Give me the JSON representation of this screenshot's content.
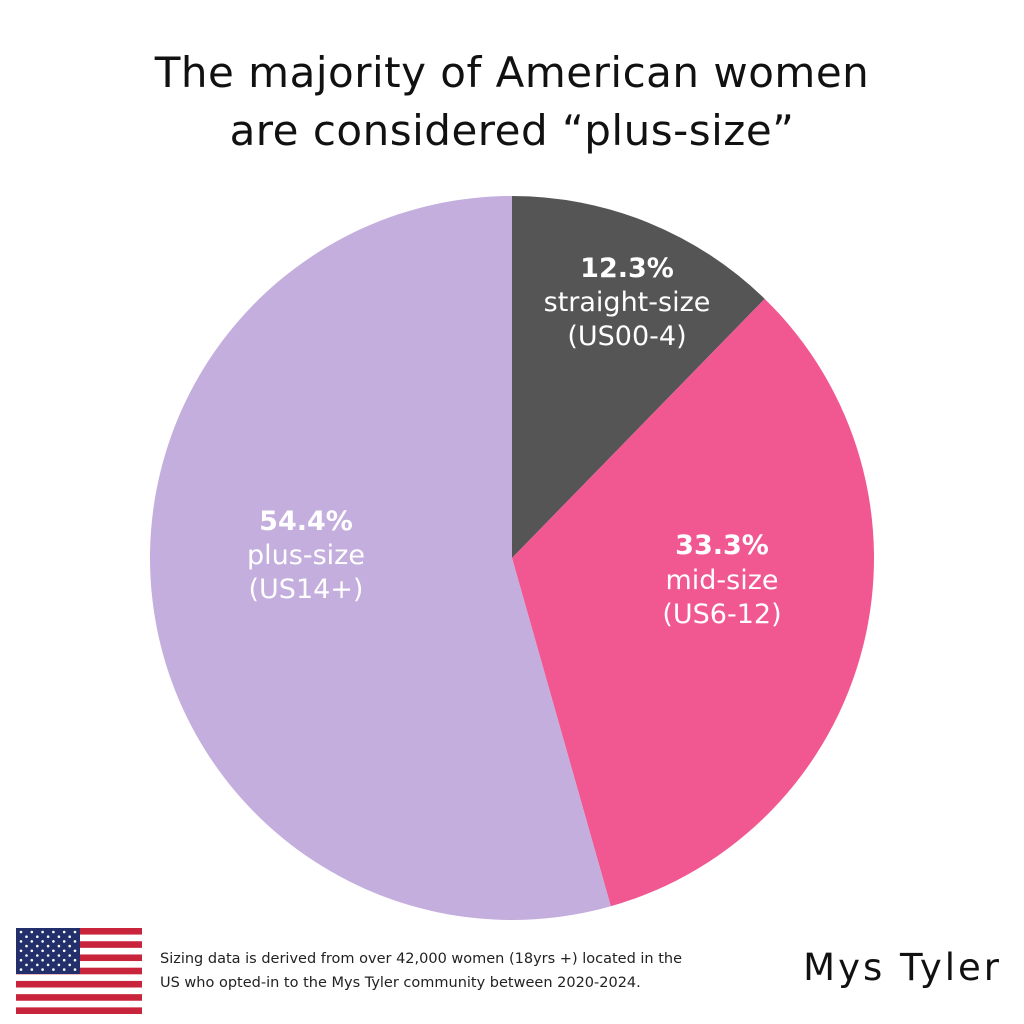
{
  "title": {
    "line1": "The majority of American women",
    "line2": "are considered “plus-size”"
  },
  "chart_data": {
    "type": "pie",
    "title": "The majority of American women are considered “plus-size”",
    "slices": [
      {
        "value": 12.3,
        "percent_label": "12.3%",
        "label": "straight-size",
        "sub_label": "(US00-4)",
        "color": "#555555"
      },
      {
        "value": 33.3,
        "percent_label": "33.3%",
        "label": "mid-size",
        "sub_label": "(US6-12)",
        "color": "#F15891"
      },
      {
        "value": 54.4,
        "percent_label": "54.4%",
        "label": "plus-size",
        "sub_label": "(US14+)",
        "color": "#C3AEDD"
      }
    ]
  },
  "footnote": {
    "line1": "Sizing data is derived from over 42,000 women (18yrs +)  located in the",
    "line2": "US who opted-in to the Mys Tyler community between 2020-2024."
  },
  "brand": "Mys Tyler",
  "flag": {
    "icon": "us-flag-icon",
    "red": "#C8243C",
    "blue": "#232F6B",
    "white": "#ffffff"
  }
}
